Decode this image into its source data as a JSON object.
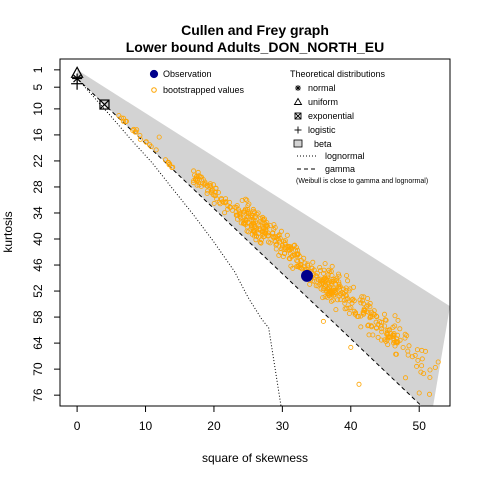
{
  "chart_data": {
    "type": "scatter",
    "title": "Cullen and Frey graph",
    "subtitle": "Lower bound  Adults_DON_NORTH_EU",
    "xlabel": "square of skewness",
    "ylabel": "kurtosis",
    "xlim": [
      -2.5,
      54.5
    ],
    "ylim": [
      78.5,
      -1.5
    ],
    "y_axis_inverted": true,
    "x_ticks": [
      "0",
      "10",
      "20",
      "30",
      "40",
      "50"
    ],
    "y_ticks": [
      "1",
      "5",
      "10",
      "16",
      "22",
      "28",
      "34",
      "40",
      "46",
      "52",
      "58",
      "64",
      "70",
      "76"
    ],
    "beta_region": {
      "color": "#d3d3d3",
      "upper_edge": [
        [
          0,
          1
        ],
        [
          54.5,
          55.5
        ]
      ],
      "lower_edge": [
        [
          0,
          3
        ],
        [
          4,
          9
        ],
        [
          51.8,
          80.7
        ]
      ]
    },
    "gamma_line": {
      "style": "dashed",
      "points": [
        [
          0,
          3
        ],
        [
          51.8,
          80.7
        ]
      ]
    },
    "lognormal_curve": {
      "style": "dotted",
      "points": [
        [
          0,
          3
        ],
        [
          2,
          6.5
        ],
        [
          5,
          11.8
        ],
        [
          8,
          17.3
        ],
        [
          11,
          22.5
        ],
        [
          14,
          28.5
        ],
        [
          17,
          34.4
        ],
        [
          20,
          40.7
        ],
        [
          23,
          47.5
        ],
        [
          25,
          53.5
        ],
        [
          27,
          58.5
        ],
        [
          28,
          60.5
        ],
        [
          29.8,
          78.5
        ]
      ]
    },
    "theoretical_points": [
      {
        "name": "normal",
        "marker": "asterisk",
        "x": 0,
        "y": 3
      },
      {
        "name": "uniform",
        "marker": "triangle",
        "x": 0,
        "y": 1.8
      },
      {
        "name": "exponential",
        "marker": "boxed-x",
        "x": 4,
        "y": 9
      },
      {
        "name": "logistic",
        "marker": "plus",
        "x": 0,
        "y": 4.2
      }
    ],
    "observation": {
      "x": 33.6,
      "y": 48.5,
      "color": "#00008b"
    },
    "bootstrap": {
      "color": "#ffa500",
      "clusters": [
        {
          "x_range": [
            6,
            14
          ],
          "y_center_offset": -0.5,
          "spread": 0.6,
          "count": 25
        },
        {
          "x_range": [
            17,
            27
          ],
          "y_center_offset": -3.5,
          "spread": 1.6,
          "count": 110
        },
        {
          "x_range": [
            24,
            38
          ],
          "y_center_offset": -6.5,
          "spread": 2.4,
          "count": 240
        },
        {
          "x_range": [
            36,
            47
          ],
          "y_center_offset": -9,
          "spread": 3.2,
          "count": 150
        },
        {
          "x_range": [
            45,
            53
          ],
          "y_center_offset": -11,
          "spread": 3.6,
          "count": 35
        }
      ],
      "extra_points": [
        [
          12,
          16.5
        ],
        [
          17,
          27
        ],
        [
          19,
          29.5
        ],
        [
          36,
          59
        ],
        [
          40,
          65
        ],
        [
          41.2,
          73.5
        ],
        [
          48,
          72
        ],
        [
          50,
          75.5
        ],
        [
          51.5,
          75.8
        ],
        [
          43,
          60
        ]
      ]
    },
    "legend": {
      "observation": "Observation",
      "bootstrap": "bootstrapped values",
      "theoretical_title": "Theoretical distributions",
      "entries": [
        "normal",
        "uniform",
        "exponential",
        "logistic",
        "beta",
        "lognormal",
        "gamma"
      ],
      "note": "(Weibull is close to gamma and lognormal)"
    }
  }
}
